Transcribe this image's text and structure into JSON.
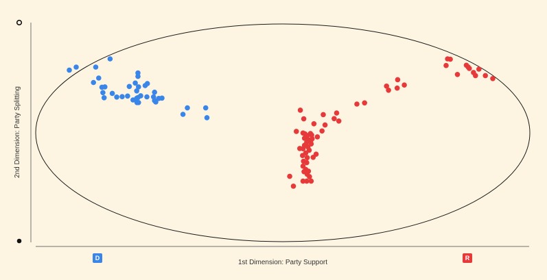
{
  "chart_data": {
    "type": "scatter",
    "xlabel": "1st Dimension: Party Support",
    "ylabel": "2nd Dimension: Party Splitting",
    "xlim": [
      -1,
      1
    ],
    "ylim": [
      -1,
      1
    ],
    "grid": false,
    "colors": {
      "D": "#3a86e8",
      "R": "#e63a3a"
    },
    "category_labels": {
      "D": "D",
      "R": "R"
    },
    "series": [
      {
        "group": "D",
        "points": [
          [
            -0.864,
            0.576
          ],
          [
            -0.836,
            0.604
          ],
          [
            -0.757,
            0.604
          ],
          [
            -0.699,
            0.679
          ],
          [
            -0.745,
            0.503
          ],
          [
            -0.766,
            0.462
          ],
          [
            -0.732,
            0.419
          ],
          [
            -0.728,
            0.369
          ],
          [
            -0.723,
            0.322
          ],
          [
            -0.69,
            0.362
          ],
          [
            -0.672,
            0.328
          ],
          [
            -0.65,
            0.332
          ],
          [
            -0.628,
            0.338
          ],
          [
            -0.621,
            0.426
          ],
          [
            -0.606,
            0.302
          ],
          [
            -0.591,
            0.317
          ],
          [
            -0.584,
            0.278
          ],
          [
            -0.586,
            0.324
          ],
          [
            -0.575,
            0.34
          ],
          [
            -0.597,
            0.457
          ],
          [
            -0.586,
            0.518
          ],
          [
            -0.586,
            0.55
          ],
          [
            -0.591,
            0.385
          ],
          [
            -0.584,
            0.422
          ],
          [
            -0.557,
            0.434
          ],
          [
            -0.548,
            0.452
          ],
          [
            -0.523,
            0.33
          ],
          [
            -0.514,
            0.283
          ],
          [
            -0.519,
            0.296
          ],
          [
            -0.502,
            0.316
          ],
          [
            -0.489,
            0.319
          ],
          [
            -0.519,
            0.373
          ],
          [
            -0.404,
            0.17
          ],
          [
            -0.386,
            0.229
          ],
          [
            -0.312,
            0.229
          ],
          [
            -0.307,
            0.139
          ],
          [
            -0.59,
            0.278
          ],
          [
            -0.55,
            0.33
          ],
          [
            -0.72,
            0.422
          ]
        ]
      },
      {
        "group": "R",
        "points": [
          [
            0.082,
            -0.002
          ],
          [
            0.117,
            -0.021
          ],
          [
            0.159,
            0.017
          ],
          [
            0.099,
            -0.025
          ],
          [
            0.14,
            -0.037
          ],
          [
            0.119,
            -0.055
          ],
          [
            0.113,
            -0.076
          ],
          [
            0.097,
            -0.087
          ],
          [
            0.115,
            -0.102
          ],
          [
            0.102,
            -0.13
          ],
          [
            0.088,
            -0.115
          ],
          [
            0.082,
            -0.146
          ],
          [
            0.107,
            -0.16
          ],
          [
            0.093,
            -0.185
          ],
          [
            0.08,
            -0.209
          ],
          [
            0.099,
            -0.228
          ],
          [
            0.084,
            -0.261
          ],
          [
            0.097,
            -0.274
          ],
          [
            0.082,
            -0.306
          ],
          [
            0.093,
            -0.337
          ],
          [
            0.104,
            -0.352
          ],
          [
            0.086,
            -0.357
          ],
          [
            0.099,
            -0.381
          ],
          [
            0.108,
            -0.403
          ],
          [
            0.115,
            -0.444
          ],
          [
            0.082,
            -0.444
          ],
          [
            0.097,
            -0.444
          ],
          [
            0.028,
            -0.4
          ],
          [
            0.043,
            -0.49
          ],
          [
            0.069,
            -0.144
          ],
          [
            0.135,
            -0.196
          ],
          [
            0.123,
            -0.225
          ],
          [
            0.055,
            0.013
          ],
          [
            0.126,
            0.083
          ],
          [
            0.171,
            0.072
          ],
          [
            0.085,
            0.128
          ],
          [
            0.071,
            0.208
          ],
          [
            0.164,
            0.167
          ],
          [
            0.208,
            0.13
          ],
          [
            0.227,
            0.108
          ],
          [
            0.218,
            0.182
          ],
          [
            0.3,
            0.264
          ],
          [
            0.331,
            0.275
          ],
          [
            0.42,
            0.429
          ],
          [
            0.428,
            0.391
          ],
          [
            0.463,
            0.411
          ],
          [
            0.465,
            0.488
          ],
          [
            0.492,
            0.439
          ],
          [
            0.667,
            0.679
          ],
          [
            0.678,
            0.676
          ],
          [
            0.661,
            0.618
          ],
          [
            0.707,
            0.536
          ],
          [
            0.743,
            0.621
          ],
          [
            0.75,
            0.605
          ],
          [
            0.755,
            0.592
          ],
          [
            0.772,
            0.554
          ],
          [
            0.794,
            0.585
          ],
          [
            0.78,
            0.526
          ],
          [
            0.82,
            0.526
          ],
          [
            0.85,
            0.498
          ],
          [
            0.09,
            -0.01
          ],
          [
            0.104,
            -0.064
          ],
          [
            0.112,
            -0.007
          ],
          [
            0.088,
            -0.05
          ]
        ]
      }
    ]
  }
}
